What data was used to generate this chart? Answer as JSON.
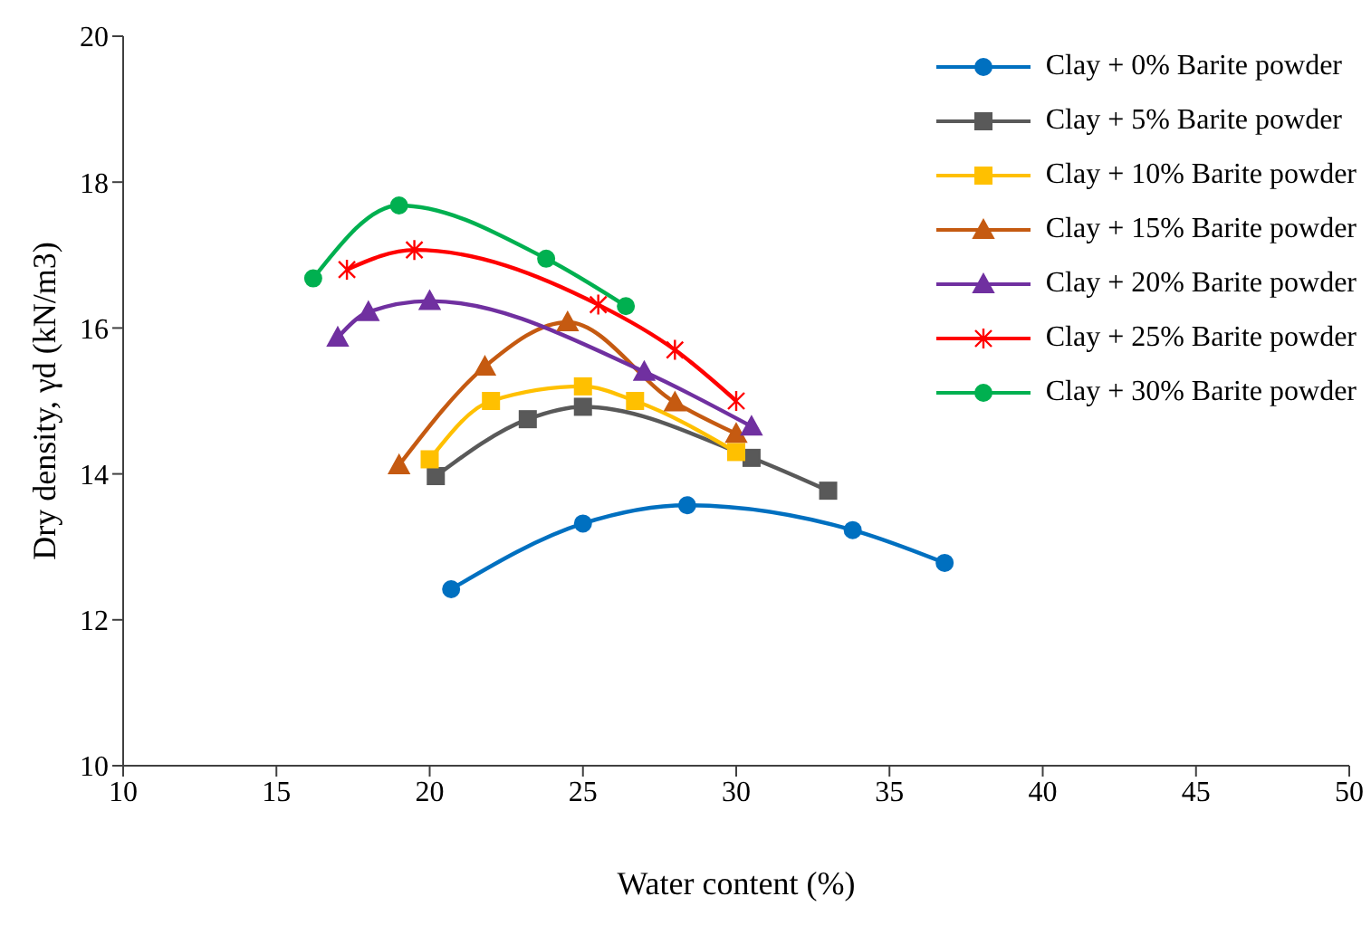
{
  "chart_data": {
    "type": "line",
    "xlabel": "Water content (%)",
    "ylabel": "Dry density, γd  (kN/m3)",
    "xlim": [
      10,
      50
    ],
    "xticks": [
      10,
      15,
      20,
      25,
      30,
      35,
      40,
      45,
      50
    ],
    "ylim": [
      10,
      20
    ],
    "yticks": [
      10,
      12,
      14,
      16,
      18,
      20
    ],
    "grid": false,
    "legend": "top right",
    "series": [
      {
        "name": "Clay + 0% Barite powder",
        "color": "#0070c0",
        "marker": "circle",
        "x": [
          20.7,
          25,
          28.4,
          33.8,
          36.8
        ],
        "values": [
          12.42,
          13.32,
          13.57,
          13.23,
          12.78
        ]
      },
      {
        "name": "Clay + 5% Barite powder",
        "color": "#595959",
        "marker": "square",
        "x": [
          20.2,
          23.2,
          25,
          30.5,
          33
        ],
        "values": [
          13.97,
          14.75,
          14.92,
          14.22,
          13.77
        ]
      },
      {
        "name": "Clay + 10% Barite powder",
        "color": "#ffc000",
        "marker": "square",
        "x": [
          20,
          22,
          25,
          26.7,
          30
        ],
        "values": [
          14.2,
          15.0,
          15.2,
          15.0,
          14.3
        ]
      },
      {
        "name": "Clay + 15% Barite powder",
        "color": "#c55a11",
        "marker": "triangle",
        "x": [
          19,
          21.8,
          24.5,
          28,
          30
        ],
        "values": [
          14.12,
          15.47,
          16.08,
          14.98,
          14.55
        ]
      },
      {
        "name": "Clay + 20% Barite powder",
        "color": "#7030a0",
        "marker": "triangle",
        "x": [
          17,
          18,
          20,
          27,
          30.5
        ],
        "values": [
          15.87,
          16.22,
          16.37,
          15.4,
          14.65
        ]
      },
      {
        "name": "Clay + 25% Barite powder",
        "color": "#ff0000",
        "marker": "cross",
        "x": [
          17.3,
          19.5,
          25.5,
          28,
          30
        ],
        "values": [
          16.8,
          17.07,
          16.32,
          15.7,
          15.0
        ]
      },
      {
        "name": "Clay + 30% Barite powder",
        "color": "#00b050",
        "marker": "circle",
        "x": [
          16.2,
          19,
          23.8,
          26.4
        ],
        "values": [
          16.68,
          17.68,
          16.95,
          16.3
        ]
      }
    ]
  }
}
